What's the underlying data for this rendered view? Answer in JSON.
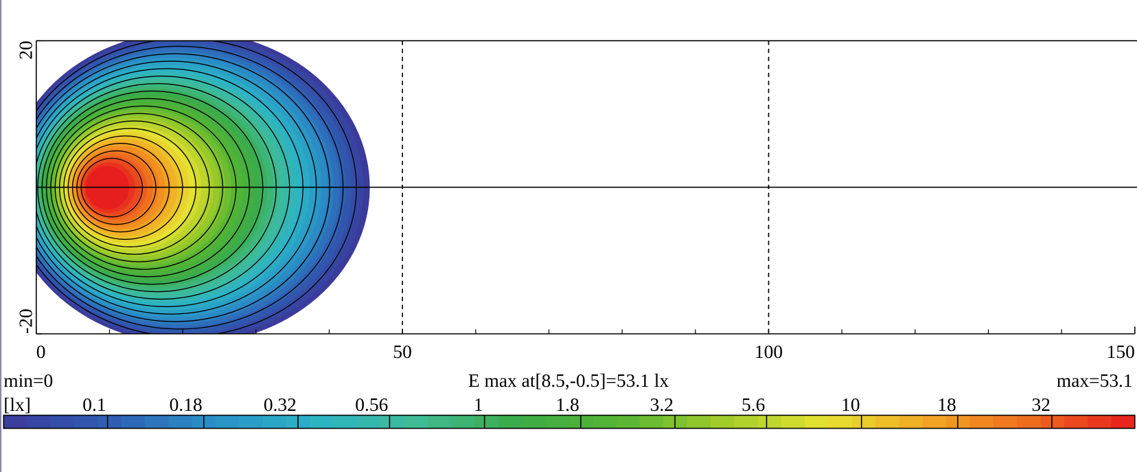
{
  "chart_data": {
    "type": "contour",
    "xlim": [
      0,
      150
    ],
    "xticks": [
      0,
      50,
      100,
      150
    ],
    "ylim": [
      -20,
      20
    ],
    "yticks": [
      -20,
      20
    ],
    "min_label": "min=0",
    "max_label": "max=53.1",
    "center_label": "E max at[8.5,-0.5]=53.1 lx",
    "unit_label": "[lx]",
    "colorbar_lim": [
      0.053,
      53.1
    ],
    "colorbar_log": true,
    "colorbar_ticks": [
      0.1,
      0.18,
      0.32,
      0.56,
      1,
      1.8,
      3.2,
      5.6,
      10,
      18,
      32
    ]
  }
}
